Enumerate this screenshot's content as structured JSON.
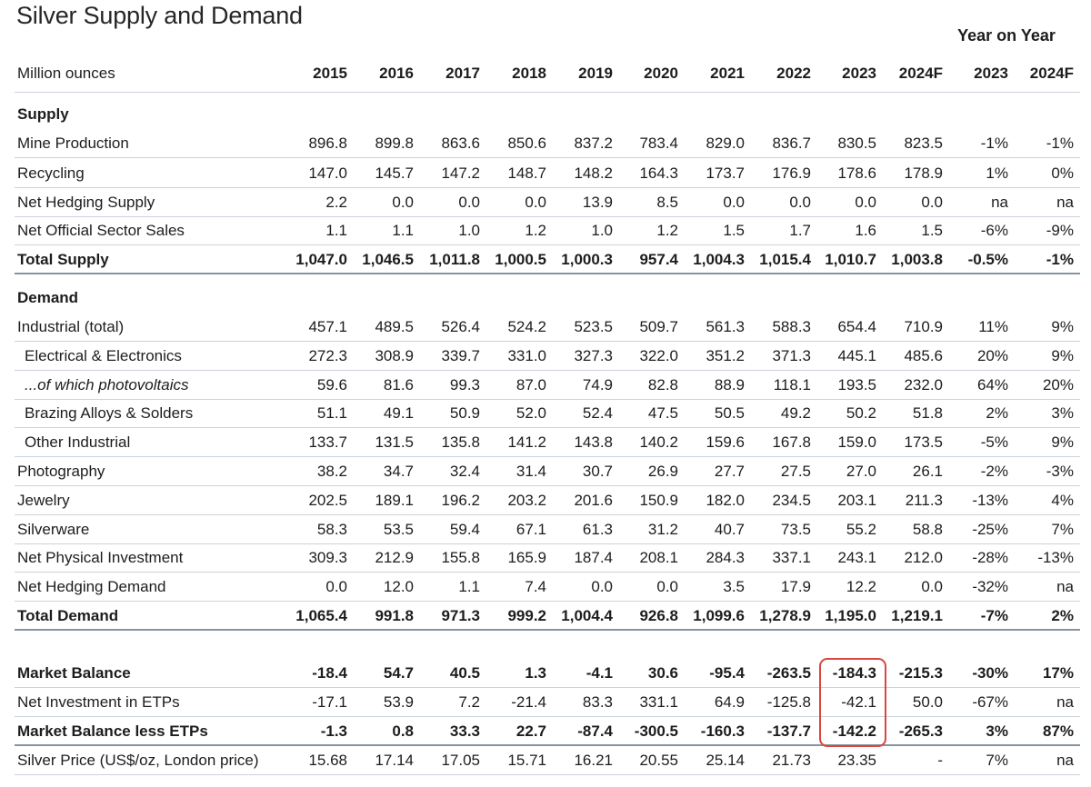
{
  "title": "Silver Supply and Demand",
  "yoy_header": "Year on Year",
  "unit_label": "Million ounces",
  "columns": [
    "2015",
    "2016",
    "2017",
    "2018",
    "2019",
    "2020",
    "2021",
    "2022",
    "2023",
    "2024F",
    "2023",
    "2024F"
  ],
  "rows": [
    {
      "type": "section",
      "label": "Supply",
      "values": []
    },
    {
      "type": "data",
      "label": "Mine Production",
      "values": [
        "896.8",
        "899.8",
        "863.6",
        "850.6",
        "837.2",
        "783.4",
        "829.0",
        "836.7",
        "830.5",
        "823.5",
        "-1%",
        "-1%"
      ]
    },
    {
      "type": "data",
      "label": "Recycling",
      "values": [
        "147.0",
        "145.7",
        "147.2",
        "148.7",
        "148.2",
        "164.3",
        "173.7",
        "176.9",
        "178.6",
        "178.9",
        "1%",
        "0%"
      ]
    },
    {
      "type": "data",
      "label": "Net Hedging Supply",
      "values": [
        "2.2",
        "0.0",
        "0.0",
        "0.0",
        "13.9",
        "8.5",
        "0.0",
        "0.0",
        "0.0",
        "0.0",
        "na",
        "na"
      ]
    },
    {
      "type": "data",
      "label": "Net Official Sector Sales",
      "values": [
        "1.1",
        "1.1",
        "1.0",
        "1.2",
        "1.0",
        "1.2",
        "1.5",
        "1.7",
        "1.6",
        "1.5",
        "-6%",
        "-9%"
      ]
    },
    {
      "type": "total",
      "label": "Total Supply",
      "values": [
        "1,047.0",
        "1,046.5",
        "1,011.8",
        "1,000.5",
        "1,000.3",
        "957.4",
        "1,004.3",
        "1,015.4",
        "1,010.7",
        "1,003.8",
        "-0.5%",
        "-1%"
      ]
    },
    {
      "type": "section",
      "label": "Demand",
      "values": []
    },
    {
      "type": "data",
      "label": "Industrial (total)",
      "values": [
        "457.1",
        "489.5",
        "526.4",
        "524.2",
        "523.5",
        "509.7",
        "561.3",
        "588.3",
        "654.4",
        "710.9",
        "11%",
        "9%"
      ]
    },
    {
      "type": "sub",
      "label": "Electrical & Electronics",
      "values": [
        "272.3",
        "308.9",
        "339.7",
        "331.0",
        "327.3",
        "322.0",
        "351.2",
        "371.3",
        "445.1",
        "485.6",
        "20%",
        "9%"
      ]
    },
    {
      "type": "italic",
      "label": "...of which photovoltaics",
      "values": [
        "59.6",
        "81.6",
        "99.3",
        "87.0",
        "74.9",
        "82.8",
        "88.9",
        "118.1",
        "193.5",
        "232.0",
        "64%",
        "20%"
      ]
    },
    {
      "type": "sub",
      "label": "Brazing Alloys & Solders",
      "values": [
        "51.1",
        "49.1",
        "50.9",
        "52.0",
        "52.4",
        "47.5",
        "50.5",
        "49.2",
        "50.2",
        "51.8",
        "2%",
        "3%"
      ]
    },
    {
      "type": "sub",
      "label": "Other Industrial",
      "values": [
        "133.7",
        "131.5",
        "135.8",
        "141.2",
        "143.8",
        "140.2",
        "159.6",
        "167.8",
        "159.0",
        "173.5",
        "-5%",
        "9%"
      ]
    },
    {
      "type": "data",
      "label": "Photography",
      "values": [
        "38.2",
        "34.7",
        "32.4",
        "31.4",
        "30.7",
        "26.9",
        "27.7",
        "27.5",
        "27.0",
        "26.1",
        "-2%",
        "-3%"
      ]
    },
    {
      "type": "data",
      "label": "Jewelry",
      "values": [
        "202.5",
        "189.1",
        "196.2",
        "203.2",
        "201.6",
        "150.9",
        "182.0",
        "234.5",
        "203.1",
        "211.3",
        "-13%",
        "4%"
      ]
    },
    {
      "type": "data",
      "label": "Silverware",
      "values": [
        "58.3",
        "53.5",
        "59.4",
        "67.1",
        "61.3",
        "31.2",
        "40.7",
        "73.5",
        "55.2",
        "58.8",
        "-25%",
        "7%"
      ]
    },
    {
      "type": "data",
      "label": "Net Physical Investment",
      "values": [
        "309.3",
        "212.9",
        "155.8",
        "165.9",
        "187.4",
        "208.1",
        "284.3",
        "337.1",
        "243.1",
        "212.0",
        "-28%",
        "-13%"
      ]
    },
    {
      "type": "data",
      "label": "Net Hedging Demand",
      "values": [
        "0.0",
        "12.0",
        "1.1",
        "7.4",
        "0.0",
        "0.0",
        "3.5",
        "17.9",
        "12.2",
        "0.0",
        "-32%",
        "na"
      ]
    },
    {
      "type": "total",
      "label": "Total Demand",
      "values": [
        "1,065.4",
        "991.8",
        "971.3",
        "999.2",
        "1,004.4",
        "926.8",
        "1,099.6",
        "1,278.9",
        "1,195.0",
        "1,219.1",
        "-7%",
        "2%"
      ]
    },
    {
      "type": "boldsep",
      "label": "Market Balance",
      "values": [
        "-18.4",
        "54.7",
        "40.5",
        "1.3",
        "-4.1",
        "30.6",
        "-95.4",
        "-263.5",
        "-184.3",
        "-215.3",
        "-30%",
        "17%"
      ]
    },
    {
      "type": "data",
      "label": "Net Investment in ETPs",
      "values": [
        "-17.1",
        "53.9",
        "7.2",
        "-21.4",
        "83.3",
        "331.1",
        "64.9",
        "-125.8",
        "-42.1",
        "50.0",
        "-67%",
        "na"
      ]
    },
    {
      "type": "total",
      "label": "Market Balance less ETPs",
      "values": [
        "-1.3",
        "0.8",
        "33.3",
        "22.7",
        "-87.4",
        "-300.5",
        "-160.3",
        "-137.7",
        "-142.2",
        "-265.3",
        "3%",
        "87%"
      ]
    },
    {
      "type": "data",
      "label": "Silver Price (US$/oz, London price)",
      "values": [
        "15.68",
        "17.14",
        "17.05",
        "15.71",
        "16.21",
        "20.55",
        "25.14",
        "21.73",
        "23.35",
        "-",
        "7%",
        "na"
      ]
    }
  ],
  "colors": {
    "highlight": "#d9473f",
    "rule": "#cbd3da",
    "total_rule": "#8693a1"
  }
}
